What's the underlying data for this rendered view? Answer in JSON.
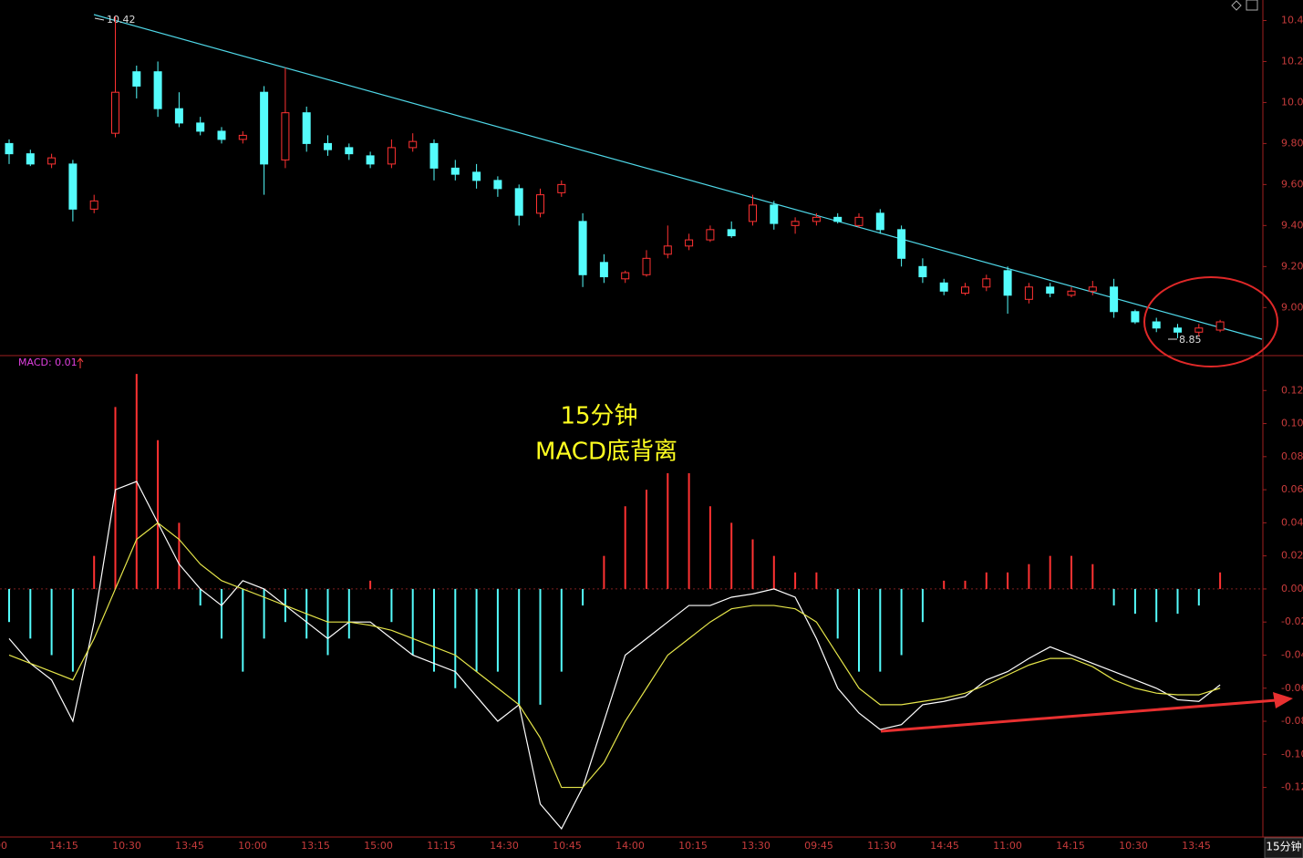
{
  "chart_data": [
    {
      "type": "candlestick",
      "up_color": "#ff3232",
      "down_color": "#54fcfc",
      "high_label": "10.42",
      "low_label": "8.85",
      "open": [
        9.8,
        9.75,
        9.7,
        9.7,
        9.48,
        9.85,
        10.15,
        10.15,
        9.97,
        9.9,
        9.86,
        9.82,
        10.05,
        9.72,
        9.95,
        9.8,
        9.78,
        9.74,
        9.7,
        9.78,
        9.8,
        9.68,
        9.66,
        9.62,
        9.58,
        9.46,
        9.56,
        9.42,
        9.22,
        9.14,
        9.16,
        9.26,
        9.3,
        9.33,
        9.38,
        9.42,
        9.5,
        9.4,
        9.42,
        9.44,
        9.4,
        9.46,
        9.38,
        9.2,
        9.12,
        9.07,
        9.1,
        9.18,
        9.04,
        9.1,
        9.06,
        9.08,
        9.1,
        8.98,
        8.93,
        8.9,
        8.88,
        8.89
      ],
      "high": [
        9.82,
        9.77,
        9.75,
        9.72,
        9.55,
        10.42,
        10.18,
        10.2,
        10.05,
        9.93,
        9.88,
        9.86,
        10.08,
        10.17,
        9.98,
        9.84,
        9.8,
        9.76,
        9.82,
        9.85,
        9.82,
        9.72,
        9.7,
        9.64,
        9.6,
        9.58,
        9.62,
        9.46,
        9.26,
        9.18,
        9.28,
        9.4,
        9.36,
        9.4,
        9.42,
        9.55,
        9.52,
        9.44,
        9.46,
        9.46,
        9.46,
        9.48,
        9.4,
        9.24,
        9.14,
        9.12,
        9.16,
        9.2,
        9.12,
        9.12,
        9.1,
        9.13,
        9.14,
        8.99,
        8.95,
        8.92,
        8.92,
        8.94
      ],
      "low": [
        9.7,
        9.69,
        9.68,
        9.42,
        9.46,
        9.83,
        10.02,
        9.93,
        9.88,
        9.84,
        9.8,
        9.8,
        9.55,
        9.68,
        9.76,
        9.74,
        9.72,
        9.68,
        9.68,
        9.76,
        9.62,
        9.62,
        9.58,
        9.54,
        9.4,
        9.44,
        9.54,
        9.1,
        9.12,
        9.12,
        9.15,
        9.24,
        9.28,
        9.32,
        9.34,
        9.4,
        9.38,
        9.36,
        9.4,
        9.41,
        9.39,
        9.36,
        9.2,
        9.12,
        9.06,
        9.06,
        9.08,
        8.97,
        9.02,
        9.05,
        9.05,
        9.06,
        8.95,
        8.92,
        8.88,
        8.85,
        8.86,
        8.88
      ],
      "close": [
        9.75,
        9.7,
        9.73,
        9.48,
        9.52,
        10.05,
        10.08,
        9.97,
        9.9,
        9.86,
        9.82,
        9.84,
        9.7,
        9.95,
        9.8,
        9.77,
        9.75,
        9.7,
        9.78,
        9.81,
        9.68,
        9.65,
        9.62,
        9.58,
        9.45,
        9.55,
        9.6,
        9.16,
        9.15,
        9.17,
        9.24,
        9.3,
        9.33,
        9.38,
        9.35,
        9.5,
        9.41,
        9.42,
        9.44,
        9.42,
        9.44,
        9.38,
        9.24,
        9.15,
        9.08,
        9.1,
        9.14,
        9.06,
        9.1,
        9.07,
        9.08,
        9.1,
        8.98,
        8.93,
        8.9,
        8.88,
        8.9,
        8.93
      ],
      "ylim": [
        8.77,
        10.5
      ],
      "yticks": [
        {
          "value": 9,
          "label": "9.00"
        },
        {
          "value": 9.2,
          "label": "9.20"
        },
        {
          "value": 9.4,
          "label": "9.40"
        },
        {
          "value": 9.6,
          "label": "9.60"
        },
        {
          "value": 9.8,
          "label": "9.80"
        },
        {
          "value": 10,
          "label": "10.00"
        },
        {
          "value": 10.2,
          "label": "10.20"
        },
        {
          "value": 10.4,
          "label": "10.40"
        }
      ]
    },
    {
      "type": "macd",
      "legend_label": "MACD: 0.01",
      "annotations": [
        "15分钟",
        "MACD底背离"
      ],
      "period_label": "15分钟",
      "xticklabels": [
        "00",
        "14:15",
        "10:30",
        "13:45",
        "10:00",
        "13:15",
        "15:00",
        "11:15",
        "14:30",
        "10:45",
        "14:00",
        "10:15",
        "13:30",
        "09:45",
        "11:30",
        "14:45",
        "11:00",
        "14:15",
        "10:30",
        "13:45"
      ],
      "ylim": [
        -0.15,
        0.14
      ],
      "yticks": [
        {
          "value": -0.12,
          "label": "-0.12"
        },
        {
          "value": -0.1,
          "label": "-0.10"
        },
        {
          "value": -0.08,
          "label": "-0.08"
        },
        {
          "value": -0.06,
          "label": "-0.06"
        },
        {
          "value": -0.04,
          "label": "-0.04"
        },
        {
          "value": -0.02,
          "label": "-0.02"
        },
        {
          "value": 0,
          "label": "0.00"
        },
        {
          "value": 0.02,
          "label": "0.02"
        },
        {
          "value": 0.04,
          "label": "0.04"
        },
        {
          "value": 0.06,
          "label": "0.06"
        },
        {
          "value": 0.08,
          "label": "0.08"
        },
        {
          "value": 0.1,
          "label": "0.10"
        },
        {
          "value": 0.12,
          "label": "0.12"
        }
      ],
      "histogram": {
        "up_color": "#ff3232",
        "down_color": "#54fcfc",
        "values": [
          -0.02,
          -0.03,
          -0.04,
          -0.05,
          0.02,
          0.11,
          0.13,
          0.09,
          0.04,
          -0.01,
          -0.03,
          -0.05,
          -0.03,
          -0.02,
          -0.03,
          -0.04,
          -0.03,
          0.005,
          -0.02,
          -0.04,
          -0.05,
          -0.06,
          -0.05,
          -0.05,
          -0.07,
          -0.07,
          -0.05,
          -0.01,
          0.02,
          0.05,
          0.06,
          0.07,
          0.07,
          0.05,
          0.04,
          0.03,
          0.02,
          0.01,
          0.01,
          -0.03,
          -0.05,
          -0.05,
          -0.04,
          -0.02,
          0.005,
          0.005,
          0.01,
          0.01,
          0.015,
          0.02,
          0.02,
          0.015,
          -0.01,
          -0.015,
          -0.02,
          -0.015,
          -0.01,
          0.01
        ]
      },
      "series": [
        {
          "color": "#ffffff",
          "values": [
            -0.03,
            -0.045,
            -0.055,
            -0.08,
            -0.02,
            0.06,
            0.065,
            0.04,
            0.015,
            0,
            -0.01,
            0.005,
            0,
            -0.01,
            -0.02,
            -0.03,
            -0.02,
            -0.02,
            -0.03,
            -0.04,
            -0.045,
            -0.05,
            -0.065,
            -0.08,
            -0.07,
            -0.13,
            -0.145,
            -0.12,
            -0.08,
            -0.04,
            -0.03,
            -0.02,
            -0.01,
            -0.01,
            -0.005,
            -0.003,
            0,
            -0.005,
            -0.03,
            -0.06,
            -0.075,
            -0.085,
            -0.082,
            -0.07,
            -0.068,
            -0.065,
            -0.055,
            -0.05,
            -0.042,
            -0.035,
            -0.04,
            -0.045,
            -0.05,
            -0.055,
            -0.06,
            -0.067,
            -0.068,
            -0.058
          ]
        },
        {
          "color": "#e6e64a",
          "values": [
            -0.04,
            -0.045,
            -0.05,
            -0.055,
            -0.03,
            0,
            0.03,
            0.04,
            0.03,
            0.015,
            0.005,
            0,
            -0.005,
            -0.01,
            -0.015,
            -0.02,
            -0.02,
            -0.022,
            -0.025,
            -0.03,
            -0.035,
            -0.04,
            -0.05,
            -0.06,
            -0.07,
            -0.09,
            -0.12,
            -0.12,
            -0.105,
            -0.08,
            -0.06,
            -0.04,
            -0.03,
            -0.02,
            -0.012,
            -0.01,
            -0.01,
            -0.012,
            -0.02,
            -0.04,
            -0.06,
            -0.07,
            -0.07,
            -0.068,
            -0.066,
            -0.063,
            -0.058,
            -0.052,
            -0.046,
            -0.042,
            -0.042,
            -0.047,
            -0.055,
            -0.06,
            -0.063,
            -0.064,
            -0.064,
            -0.06
          ]
        }
      ]
    }
  ]
}
